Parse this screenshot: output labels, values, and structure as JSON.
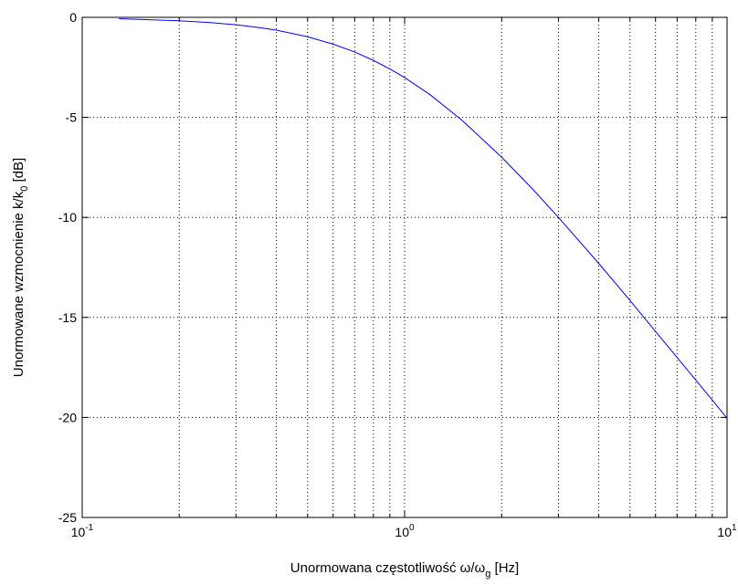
{
  "chart_data": {
    "type": "line",
    "title": "",
    "xlabel": "Unormowana częstotliwość ω/ω",
    "xlabel_subscript": "g",
    "xlabel_unit": " [Hz]",
    "ylabel": "Unormowane wzmocnienie k/k",
    "ylabel_subscript": "0",
    "ylabel_unit": " [dB]",
    "xscale": "log",
    "xlim": [
      0.1,
      10
    ],
    "ylim": [
      -25,
      0
    ],
    "grid": true,
    "x_ticks": [
      {
        "base": "10",
        "exp": "-1"
      },
      {
        "base": "10",
        "exp": "0"
      },
      {
        "base": "10",
        "exp": "1"
      }
    ],
    "y_ticks": [
      "0",
      "-5",
      "-10",
      "-15",
      "-20",
      "-25"
    ],
    "series": [
      {
        "color": "#0000ff",
        "x": [
          0.13,
          0.15,
          0.2,
          0.25,
          0.3,
          0.35,
          0.4,
          0.5,
          0.6,
          0.7,
          0.8,
          0.9,
          1.0,
          1.2,
          1.5,
          2.0,
          2.5,
          3.0,
          4.0,
          5.0,
          6.0,
          7.0,
          8.0,
          9.0,
          10.0
        ],
        "y": [
          -0.07,
          -0.1,
          -0.17,
          -0.26,
          -0.37,
          -0.5,
          -0.64,
          -0.97,
          -1.34,
          -1.73,
          -2.15,
          -2.58,
          -3.01,
          -3.87,
          -5.12,
          -6.99,
          -8.6,
          -10.0,
          -12.3,
          -14.15,
          -15.7,
          -17.0,
          -18.13,
          -19.13,
          -20.04
        ]
      }
    ]
  }
}
